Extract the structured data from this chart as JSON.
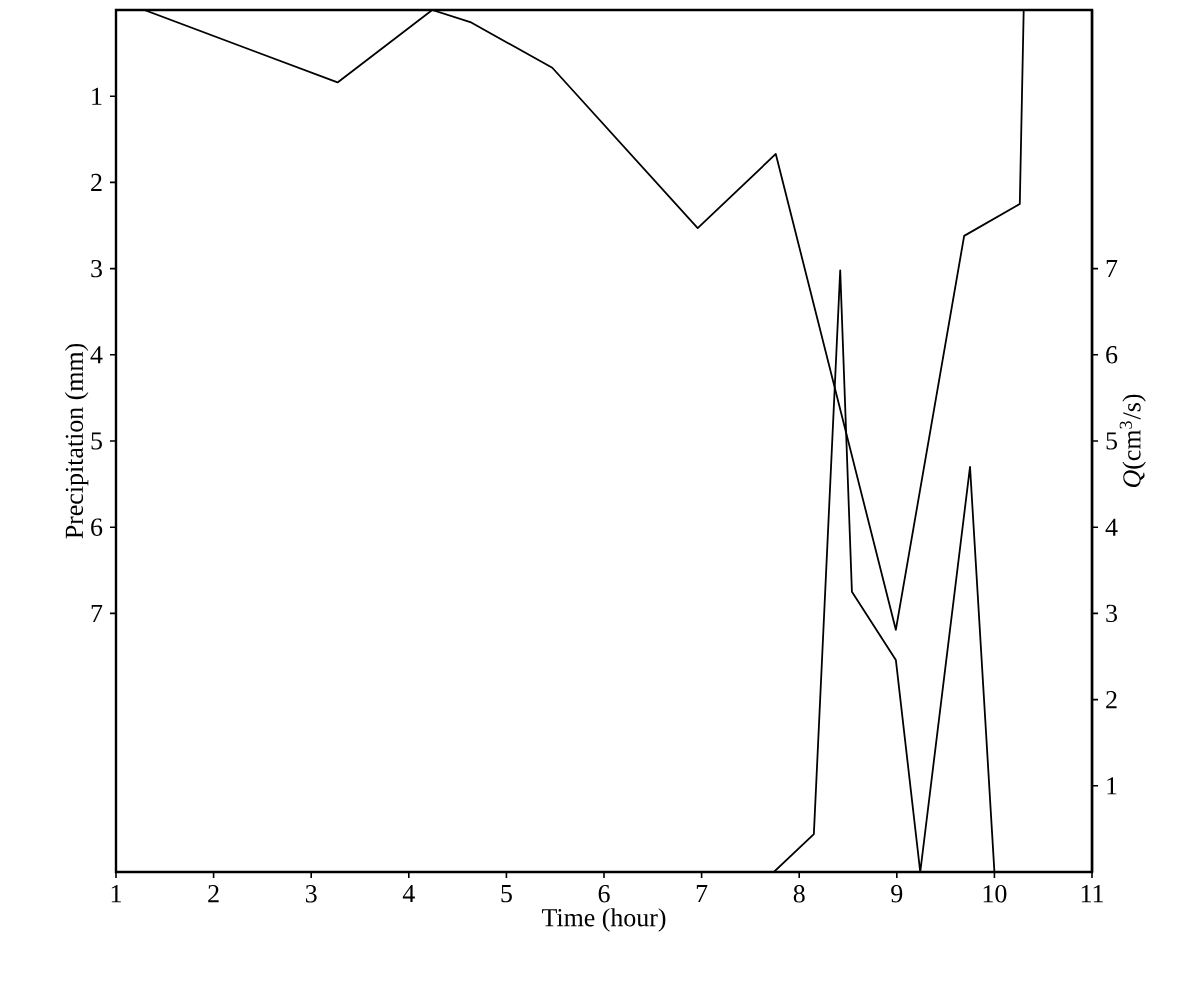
{
  "chart_data": {
    "type": "line",
    "xlabel": "Time (hour)",
    "ylabel": "Precipitation (mm)",
    "y2label": "*Q*(cm$^{3}$/s)",
    "xlim": [
      1,
      11
    ],
    "xticks": [
      1,
      2,
      3,
      4,
      5,
      6,
      7,
      8,
      9,
      10,
      11
    ],
    "ylim": [
      10,
      0
    ],
    "yticks": [
      1,
      2,
      3,
      4,
      5,
      6,
      7
    ],
    "y2lim": [
      0,
      10
    ],
    "y2ticks": [
      1,
      2,
      3,
      4,
      5,
      6,
      7
    ],
    "series": [
      {
        "color": "#000000",
        "axis": "y",
        "x": [
          1.29,
          3.27,
          4.24,
          4.63,
          5.47,
          6.96,
          7.76,
          8.99,
          9.69,
          10.26,
          10.3
        ],
        "values": [
          0,
          0.84,
          0,
          0.14,
          0.67,
          2.53,
          1.67,
          7.19,
          2.62,
          2.25,
          0
        ]
      },
      {
        "color": "#000000",
        "axis": "y2",
        "x": [
          7.74,
          8.15,
          8.42,
          8.54,
          8.99,
          9.24,
          9.75,
          10.0
        ],
        "values": [
          0,
          0.44,
          6.98,
          3.25,
          2.46,
          0,
          4.7,
          0
        ]
      }
    ]
  }
}
